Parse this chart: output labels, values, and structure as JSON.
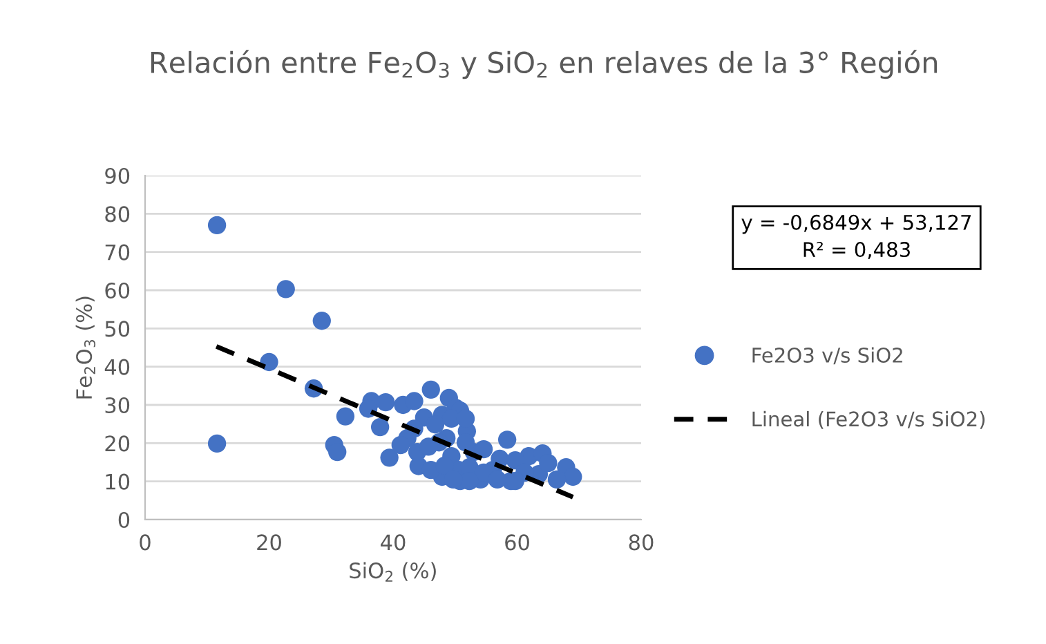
{
  "chart_data": {
    "type": "scatter",
    "title": "Relación entre Fe$_{2}$O$_{3}$ y SiO$_{2}$ en relaves de la 3° Región",
    "xlabel": "SiO$_{2}$ (%)",
    "ylabel": "Fe$_{2}$O$_{3}$ (%)",
    "series": [
      {
        "name": "Fe2O3 v/s SiO2",
        "color": "#4472c4",
        "marker": "circle",
        "x": [
          11.6,
          11.6,
          22.7,
          28.5,
          20.0,
          27.2,
          32.3,
          36.5,
          38.8,
          36.0,
          37.9,
          30.5,
          31.0,
          39.4,
          41.6,
          46.1,
          43.4,
          49.0,
          50.1,
          50.8,
          47.9,
          45.0,
          51.9,
          58.4,
          43.9,
          44.1,
          47.9,
          50.8,
          54.1,
          59.0,
          61.9,
          64.1,
          67.9,
          69.0,
          66.4,
          63.5,
          56.1,
          53.0,
          49.4,
          46.1,
          43.4,
          42.3,
          41.2,
          48.6,
          51.7,
          54.6,
          57.2,
          59.7,
          61.2,
          50.6,
          52.3,
          54.6,
          56.8,
          65.0,
          46.8,
          49.4,
          51.7,
          47.4,
          45.7,
          48.3,
          52.3,
          49.7,
          59.7
        ],
        "values": [
          77,
          19.9,
          60.3,
          52,
          41.2,
          34.3,
          27,
          31,
          30.7,
          29,
          24.2,
          19.5,
          17.7,
          16.2,
          30,
          34,
          31,
          31.8,
          29.2,
          28.5,
          27.4,
          26.7,
          23.1,
          20.9,
          17.7,
          14,
          11.2,
          10.1,
          10.5,
          10.1,
          16.6,
          17.3,
          13.7,
          11.2,
          10.5,
          11.9,
          13,
          17.7,
          16.6,
          13,
          23.8,
          21.3,
          19.5,
          21.3,
          20.2,
          18.4,
          15.9,
          15.5,
          12.3,
          13,
          13.7,
          12.3,
          10.5,
          14.8,
          24.9,
          26.4,
          26.4,
          20.2,
          19.1,
          14.1,
          10.1,
          10.5,
          10.1
        ]
      },
      {
        "name": "Lineal (Fe2O3 v/s SiO2)",
        "type": "line",
        "color": "#000000",
        "line_style": "dashed",
        "marker": "none",
        "x": [
          11.5,
          69
        ],
        "values": [
          45.3,
          5.9
        ]
      }
    ],
    "xlim": [
      0,
      80
    ],
    "ylim": [
      0,
      90
    ],
    "xticks": [
      0,
      20,
      40,
      60,
      80
    ],
    "yticks": [
      0,
      10,
      20,
      30,
      40,
      50,
      60,
      70,
      80,
      90
    ],
    "grid": "y",
    "legend": "right",
    "annotations": [
      "y = -0,6849x + 53,127",
      "R² = 0,483"
    ]
  }
}
